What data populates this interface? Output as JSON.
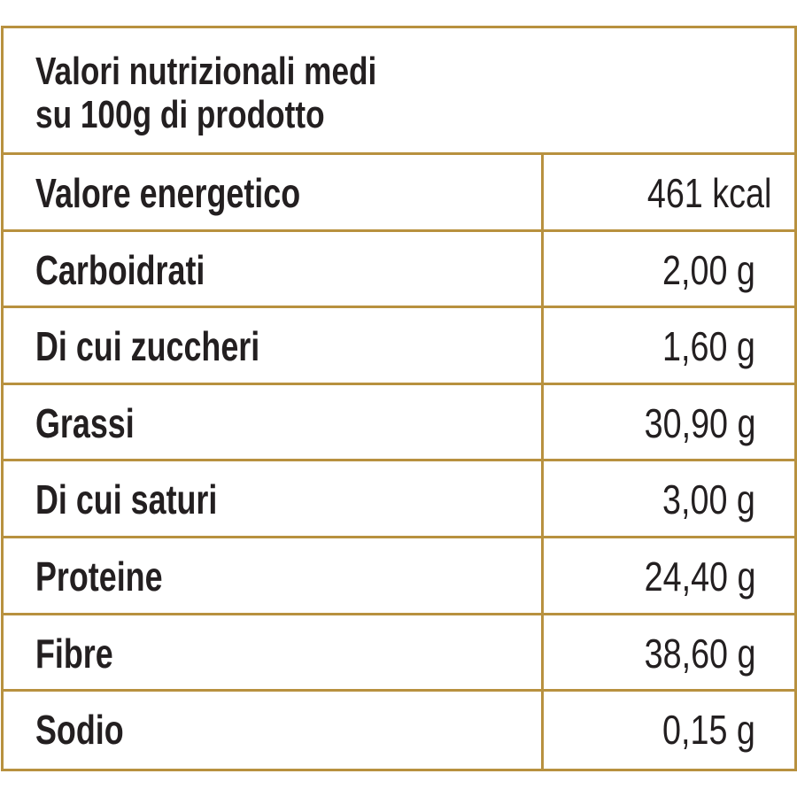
{
  "table": {
    "title": [
      "Valori nutrizionali medi",
      "su 100g di prodotto"
    ],
    "rows": [
      [
        "Valore energetico",
        "461 kcal"
      ],
      [
        "Carboidrati",
        "2,00 g"
      ],
      [
        "Di cui zuccheri",
        "1,60 g"
      ],
      [
        "Grassi",
        "30,90 g"
      ],
      [
        "Di cui saturi",
        "3,00 g"
      ],
      [
        "Proteine",
        "24,40 g"
      ],
      [
        "Fibre",
        "38,60 g"
      ],
      [
        "Sodio",
        "0,15 g"
      ]
    ]
  }
}
